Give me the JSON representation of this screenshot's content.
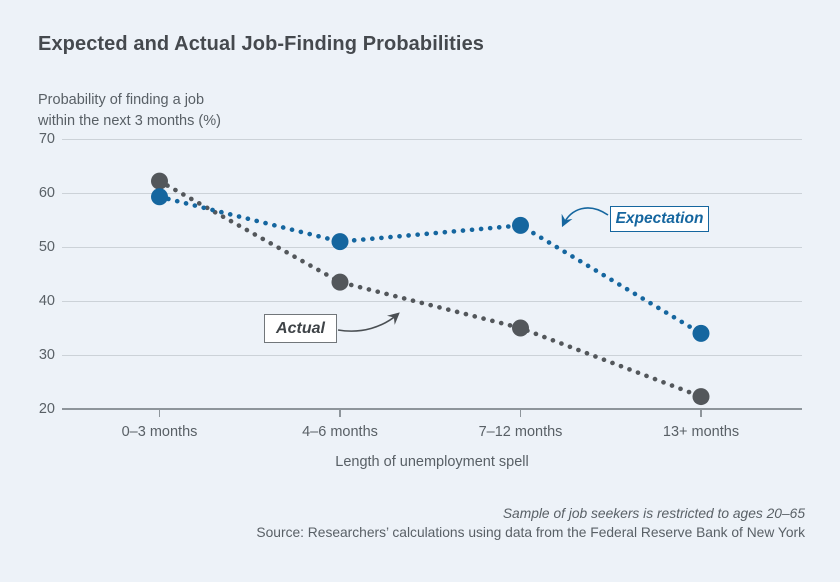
{
  "header": {
    "title": "Expected and Actual Job-Finding Probabilities"
  },
  "chart_data": {
    "type": "line",
    "title": "Expected and Actual Job-Finding Probabilities",
    "ylabel_lines": [
      "Probability of finding a job",
      "within the next 3 months (%)"
    ],
    "xlabel": "Length of unemployment spell",
    "categories": [
      "0–3 months",
      "4–6 months",
      "7–12 months",
      "13+ months"
    ],
    "series": [
      {
        "name": "Actual",
        "color": "#53575b",
        "line_style": "dotted",
        "values": [
          62.2,
          43.5,
          35,
          22.3
        ]
      },
      {
        "name": "Expectation",
        "color": "#15669f",
        "line_style": "dotted",
        "values": [
          59.3,
          51,
          54,
          34
        ]
      }
    ],
    "ylim": [
      20,
      70
    ],
    "yticks": [
      70,
      60,
      50,
      40,
      30,
      20
    ],
    "grid": "horizontal",
    "legend_position": "inline-callouts",
    "annotations": [
      {
        "label": "Expectation",
        "color": "#15669f"
      },
      {
        "label": "Actual",
        "color": "#3f4448"
      }
    ]
  },
  "footer": {
    "note": "Sample of job seekers is restricted to ages 20–65",
    "source": "Source: Researchers’ calculations using data from the Federal Reserve Bank of New York"
  }
}
